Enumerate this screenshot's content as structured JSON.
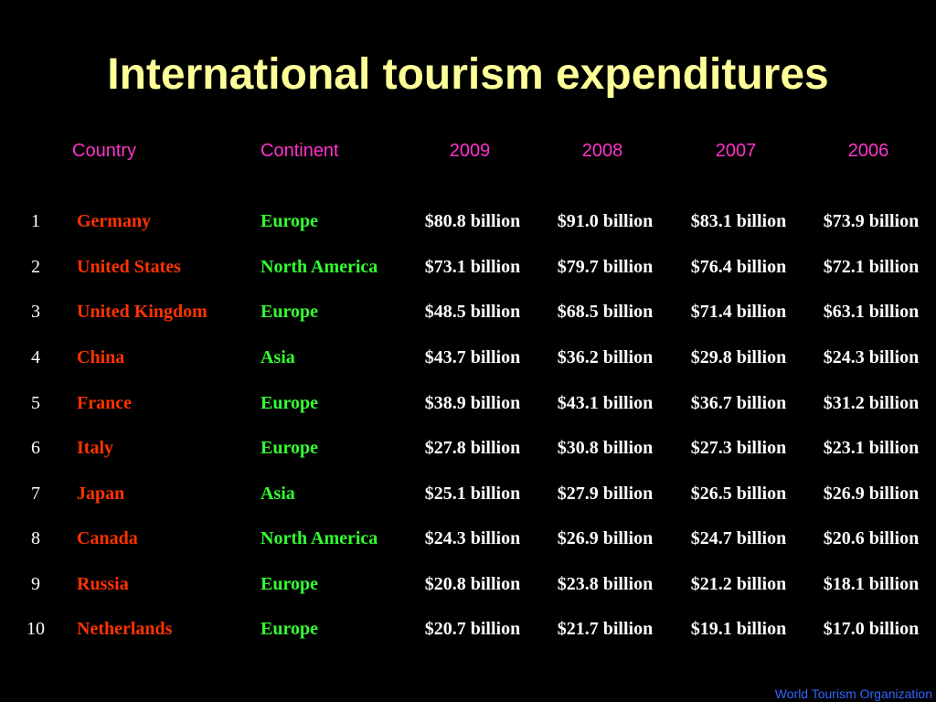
{
  "title": "International tourism expenditures",
  "headers": {
    "country": "Country",
    "continent": "Continent",
    "y2009": "2009",
    "y2008": "2008",
    "y2007": "2007",
    "y2006": "2006"
  },
  "colors": {
    "background": "#000000",
    "title": "#ffff99",
    "header": "#ff33cc",
    "country": "#ff3300",
    "continent": "#33ff33",
    "values": "#ffffff",
    "source": "#3366ff"
  },
  "rows": [
    {
      "rank": "1",
      "country": "Germany",
      "continent": "Europe",
      "y2009": "$80.8 billion",
      "y2008": "$91.0 billion",
      "y2007": "$83.1 billion",
      "y2006": "$73.9 billion"
    },
    {
      "rank": "2",
      "country": "United States",
      "continent": "North America",
      "y2009": "$73.1 billion",
      "y2008": "$79.7 billion",
      "y2007": "$76.4 billion",
      "y2006": "$72.1 billion"
    },
    {
      "rank": "3",
      "country": "United Kingdom",
      "continent": "Europe",
      "y2009": "$48.5 billion",
      "y2008": "$68.5 billion",
      "y2007": "$71.4 billion",
      "y2006": "$63.1 billion"
    },
    {
      "rank": "4",
      "country": "China",
      "continent": "Asia",
      "y2009": "$43.7 billion",
      "y2008": "$36.2 billion",
      "y2007": "$29.8 billion",
      "y2006": "$24.3 billion"
    },
    {
      "rank": "5",
      "country": "France",
      "continent": "Europe",
      "y2009": "$38.9 billion",
      "y2008": "$43.1 billion",
      "y2007": "$36.7 billion",
      "y2006": "$31.2 billion"
    },
    {
      "rank": "6",
      "country": "Italy",
      "continent": "Europe",
      "y2009": "$27.8 billion",
      "y2008": "$30.8 billion",
      "y2007": "$27.3 billion",
      "y2006": "$23.1 billion"
    },
    {
      "rank": "7",
      "country": "Japan",
      "continent": "Asia",
      "y2009": "$25.1 billion",
      "y2008": "$27.9 billion",
      "y2007": "$26.5 billion",
      "y2006": "$26.9 billion"
    },
    {
      "rank": "8",
      "country": "Canada",
      "continent": "North America",
      "y2009": "$24.3 billion",
      "y2008": "$26.9 billion",
      "y2007": "$24.7 billion",
      "y2006": "$20.6 billion"
    },
    {
      "rank": "9",
      "country": "Russia",
      "continent": "Europe",
      "y2009": "$20.8 billion",
      "y2008": "$23.8 billion",
      "y2007": "$21.2 billion",
      "y2006": "$18.1 billion"
    },
    {
      "rank": "10",
      "country": "Netherlands",
      "continent": "Europe",
      "y2009": "$20.7 billion",
      "y2008": "$21.7 billion",
      "y2007": "$19.1 billion",
      "y2006": "$17.0 billion"
    }
  ],
  "source": "World Tourism Organization"
}
